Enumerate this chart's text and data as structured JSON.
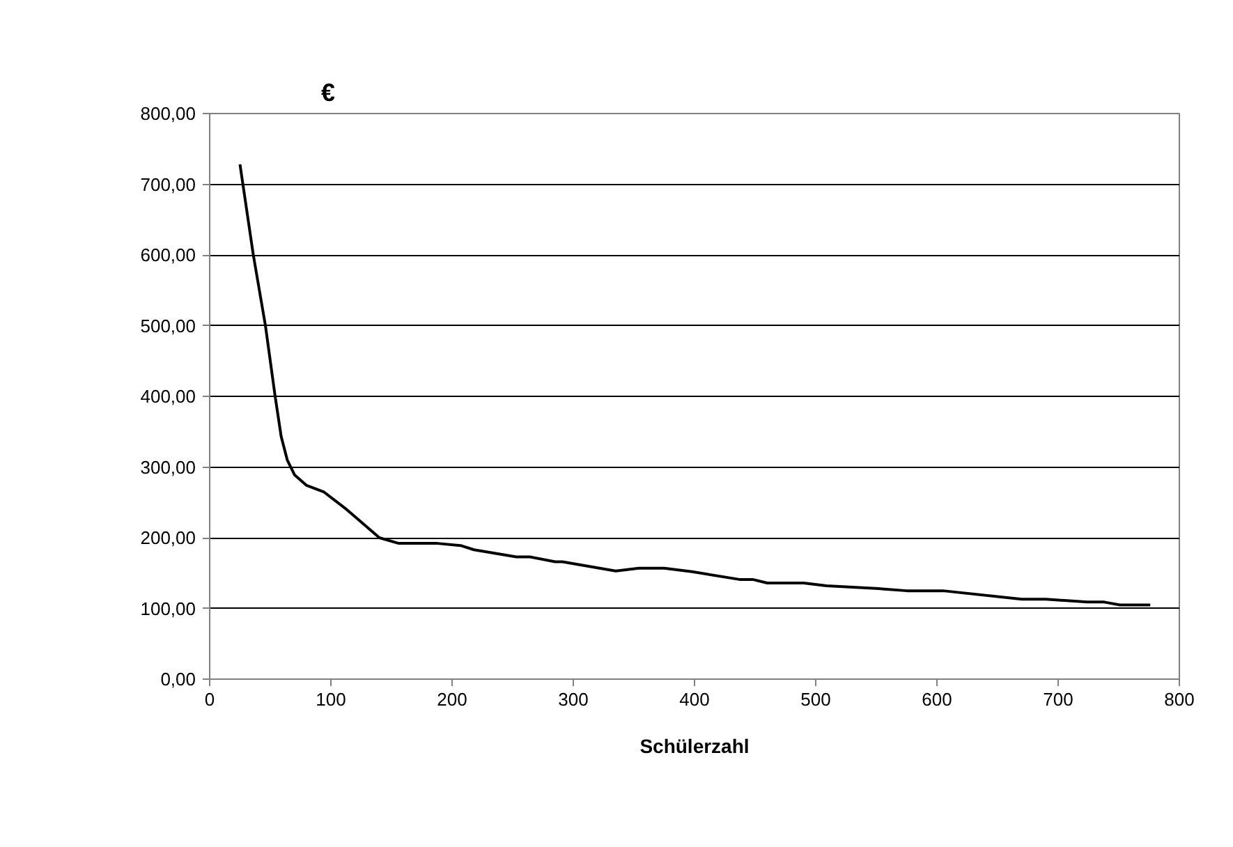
{
  "chart_data": {
    "type": "line",
    "ylabel": "€",
    "xlabel": "Schülerzahl",
    "x": [
      25,
      36,
      46,
      54,
      59,
      64,
      70,
      80,
      94,
      113,
      140,
      156,
      188,
      207,
      218,
      253,
      264,
      285,
      291,
      335,
      354,
      375,
      398,
      437,
      448,
      460,
      490,
      509,
      552,
      575,
      605,
      670,
      690,
      724,
      738,
      751,
      776
    ],
    "series": [
      {
        "color": "#000000",
        "values": [
          728,
          600,
          500,
          400,
          343,
          310,
          289,
          274,
          265,
          240,
          200,
          192,
          192,
          189,
          183,
          173,
          173,
          166,
          166,
          153,
          157,
          157,
          152,
          141,
          141,
          136,
          136,
          132,
          128,
          125,
          125,
          113,
          113,
          109,
          109,
          105,
          105
        ]
      }
    ],
    "xlim": [
      0,
      800
    ],
    "xticks": [
      0,
      100,
      200,
      300,
      400,
      500,
      600,
      700,
      800
    ],
    "ylim": [
      0,
      800
    ],
    "yticks": [
      {
        "value": 0,
        "label": "0,00"
      },
      {
        "value": 100,
        "label": "100,00"
      },
      {
        "value": 200,
        "label": "200,00"
      },
      {
        "value": 300,
        "label": "300,00"
      },
      {
        "value": 400,
        "label": "400,00"
      },
      {
        "value": 500,
        "label": "500,00"
      },
      {
        "value": 600,
        "label": "600,00"
      },
      {
        "value": 700,
        "label": "700,00"
      },
      {
        "value": 800,
        "label": "800,00"
      }
    ],
    "grid": "y",
    "marker": "none",
    "line_style": "solid"
  }
}
